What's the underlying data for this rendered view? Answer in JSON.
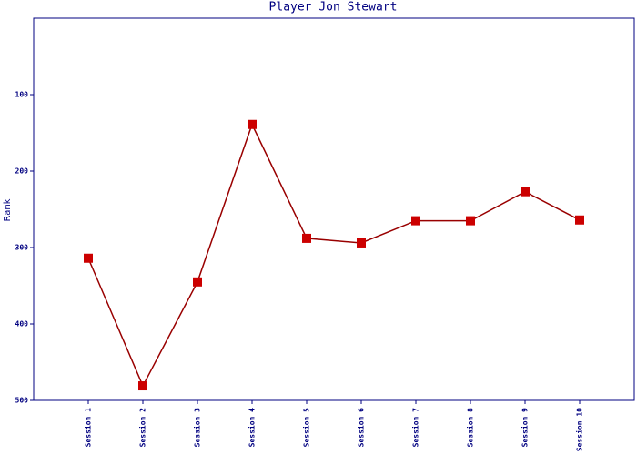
{
  "chart_data": {
    "type": "line",
    "title": "Player Jon Stewart",
    "y_label": "Rank",
    "categories": [
      "Session 1",
      "Session 2",
      "Session 3",
      "Session 4",
      "Session 5",
      "Session 6",
      "Session 7",
      "Session 8",
      "Session 9",
      "Session 10"
    ],
    "series": [
      {
        "name": "Rank",
        "color": "#990000",
        "marker_color": "#cc0000",
        "values": [
          314,
          481,
          345,
          139,
          288,
          294,
          265,
          265,
          227,
          264
        ]
      }
    ],
    "ylim": [
      0,
      500
    ],
    "y_inverted": true,
    "yticks": [
      100,
      200,
      300,
      400,
      500
    ],
    "axis_color": "#000080"
  }
}
